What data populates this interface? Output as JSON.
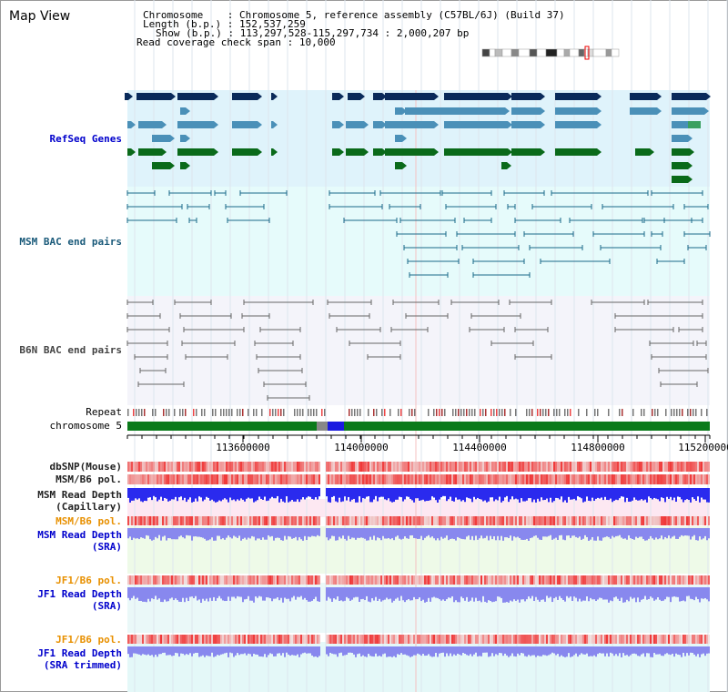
{
  "title": "Map View",
  "info": {
    "chromosome_label": "Chromosome",
    "chromosome_value": "Chromosome 5, reference assembly (C57BL/6J) (Build 37)",
    "length_label": "Length (b.p.)",
    "length_value": "152,537,259",
    "show_label": "Show (b.p.)",
    "show_value": "113,297,528-115,297,734 : 2,000,207 bp",
    "span_label": "Read coverage check span",
    "span_value": "10,000"
  },
  "tracks": {
    "refseq": "RefSeq Genes",
    "msm_bac": "MSM BAC end pairs",
    "b6n_bac": "B6N BAC end pairs",
    "repeat": "Repeat",
    "chromosome": "chromosome 5",
    "dbsnp": "dbSNP(Mouse)",
    "msm_b6_pol_1": "MSM/B6 pol.",
    "msm_depth_cap": "MSM Read Depth\n(Capillary)",
    "msm_b6_pol_2": "MSM/B6 pol.",
    "msm_depth_sra": "MSM Read Depth\n(SRA)",
    "jf1_b6_pol_1": "JF1/B6 pol.",
    "jf1_depth_sra": "JF1 Read Depth\n(SRA)",
    "jf1_b6_pol_2": "JF1/B6 pol.",
    "jf1_depth_trim": "JF1 Read Depth\n(SRA trimmed)"
  },
  "axis": {
    "ticks": [
      "113600000",
      "114000000",
      "114400000",
      "114800000",
      "115200000"
    ]
  },
  "colors": {
    "refseq_dark": "#0a2a5a",
    "refseq_mid": "#4a90b8",
    "refseq_green": "#0a6a1a",
    "bac_teal": "#1a6a8a",
    "bac_gray": "#666666",
    "chromosome_bar": "#0a7a1a",
    "depth_blue": "#2a2aee",
    "depth_light": "#8888ee",
    "pol_red": "#ee3333"
  }
}
